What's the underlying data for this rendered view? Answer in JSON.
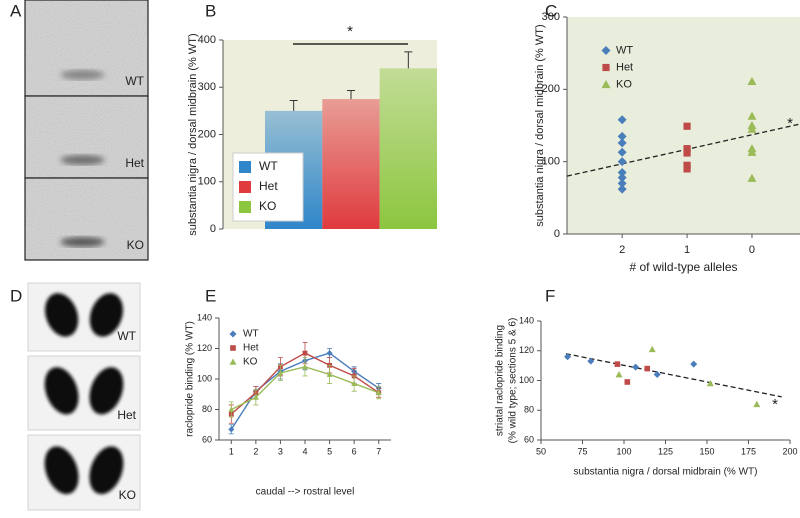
{
  "image_panels": [
    {
      "letter": "A",
      "labels": [
        "WT",
        "Het",
        "KO"
      ]
    },
    {
      "letter": "D",
      "labels": [
        "WT",
        "Het",
        "KO"
      ]
    }
  ],
  "chart_data": [
    {
      "panel": "B",
      "type": "bar",
      "ylabel": "substantia nigra / dorsal midbrain (% WT)",
      "categories": [
        null
      ],
      "series": [
        {
          "name": "WT",
          "color": "#2f86c9",
          "values": [
            250
          ],
          "errors": [
            22
          ]
        },
        {
          "name": "Het",
          "color": "#e03a3e",
          "values": [
            275
          ],
          "errors": [
            18
          ]
        },
        {
          "name": "KO",
          "color": "#8cc63f",
          "values": [
            340
          ],
          "errors": [
            35
          ]
        }
      ],
      "ylim": [
        0,
        400
      ],
      "yticks": [
        0,
        100,
        200,
        300,
        400
      ],
      "annotation": "*",
      "legend": "lower-left"
    },
    {
      "panel": "C",
      "type": "scatter",
      "ylabel": "substantia nigra / dorsal midbrain (% WT)",
      "xlabel": "# of wild-type alleles",
      "series": [
        {
          "name": "WT",
          "color": "#4a7ebb",
          "marker": "diamond",
          "x": [
            2,
            2,
            2,
            2,
            2,
            2,
            2,
            2,
            2
          ],
          "values": [
            158,
            135,
            126,
            113,
            100,
            85,
            78,
            70,
            62
          ]
        },
        {
          "name": "Het",
          "color": "#be4b48",
          "marker": "square",
          "x": [
            1,
            1,
            1,
            1,
            1
          ],
          "values": [
            149,
            118,
            112,
            95,
            90
          ]
        },
        {
          "name": "KO",
          "color": "#9bbb59",
          "marker": "triangle",
          "x": [
            0,
            0,
            0,
            0,
            0,
            0,
            0
          ],
          "values": [
            211,
            163,
            150,
            145,
            118,
            113,
            77
          ]
        }
      ],
      "xlim": [
        2.85,
        -0.74
      ],
      "xticks": [
        2,
        1,
        0
      ],
      "ylim": [
        0,
        300
      ],
      "yticks": [
        0,
        100,
        200,
        300
      ],
      "trendline": {
        "x": [
          2.85,
          -0.74
        ],
        "y": [
          80,
          152
        ]
      },
      "annotation": "*",
      "legend": "upper-left"
    },
    {
      "panel": "E",
      "type": "line",
      "ylabel": "raclopride binding (% WT)",
      "xlabel": "caudal --> rostral level",
      "x": [
        1,
        2,
        3,
        4,
        5,
        6,
        7
      ],
      "series": [
        {
          "name": "WT",
          "color": "#4a7ebb",
          "marker": "diamond",
          "values": [
            67,
            92,
            105,
            112,
            117,
            105,
            94
          ],
          "errors": [
            3,
            3,
            5,
            6,
            3,
            3,
            3
          ]
        },
        {
          "name": "Het",
          "color": "#be4b48",
          "marker": "square",
          "values": [
            77,
            91,
            108,
            117,
            109,
            102,
            91
          ],
          "errors": [
            6,
            4,
            6,
            7,
            5,
            5,
            3
          ]
        },
        {
          "name": "KO",
          "color": "#9bbb59",
          "marker": "triangle",
          "values": [
            80,
            88,
            104,
            108,
            103,
            97,
            91
          ],
          "errors": [
            5,
            5,
            5,
            6,
            6,
            5,
            4
          ]
        }
      ],
      "xlim": [
        0.5,
        7.5
      ],
      "xticks": [
        1,
        2,
        3,
        4,
        5,
        6,
        7
      ],
      "ylim": [
        60,
        140
      ],
      "yticks": [
        60,
        80,
        100,
        120,
        140
      ],
      "legend": "upper-left"
    },
    {
      "panel": "F",
      "type": "scatter",
      "ylabel": [
        "striatal raclopride binding",
        "(% wild type; sections 5 & 6)"
      ],
      "xlabel": "substantia nigra / dorsal midbrain (% WT)",
      "series": [
        {
          "color": "#4a7ebb",
          "marker": "diamond",
          "x": [
            66,
            80,
            107,
            120,
            142
          ],
          "values": [
            116,
            113,
            109,
            104,
            111
          ]
        },
        {
          "color": "#be4b48",
          "marker": "square",
          "x": [
            96,
            102,
            114
          ],
          "values": [
            111,
            99,
            108
          ]
        },
        {
          "color": "#9bbb59",
          "marker": "triangle",
          "x": [
            97,
            117,
            152,
            180
          ],
          "values": [
            104,
            121,
            98,
            84
          ]
        }
      ],
      "xlim": [
        50,
        200
      ],
      "xticks": [
        50,
        75,
        100,
        125,
        150,
        175,
        200
      ],
      "ylim": [
        60,
        140
      ],
      "yticks": [
        60,
        80,
        100,
        120,
        140
      ],
      "trendline": {
        "x": [
          65,
          195
        ],
        "y": [
          118,
          89
        ]
      },
      "annotation": "*"
    }
  ]
}
